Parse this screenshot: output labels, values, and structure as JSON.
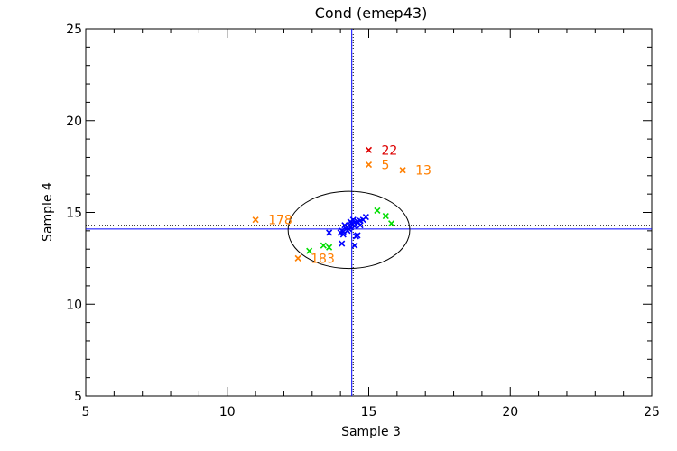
{
  "chart_data": {
    "type": "scatter",
    "title": "Cond (emep43)",
    "xlabel": "Sample 3",
    "ylabel": "Sample 4",
    "xlim": [
      5,
      25
    ],
    "ylim": [
      5,
      25
    ],
    "xticks": [
      5,
      10,
      15,
      20,
      25
    ],
    "yticks": [
      5,
      10,
      15,
      20,
      25
    ],
    "colors": {
      "blue": "#0000ff",
      "green": "#00dd00",
      "orange": "#ff7f00",
      "red": "#dd0000",
      "black": "#000000"
    },
    "reference_lines": {
      "mean_x": 14.4,
      "mean_y": 14.1,
      "median_x": 14.45,
      "median_y": 14.3
    },
    "ellipse": {
      "cx": 14.3,
      "cy": 14.05,
      "rx": 2.15,
      "ry": 2.1
    },
    "series": [
      {
        "name": "blue",
        "color": "#0000ff",
        "points": [
          [
            14.0,
            13.9
          ],
          [
            14.05,
            14.0
          ],
          [
            14.1,
            13.8
          ],
          [
            14.2,
            14.1
          ],
          [
            14.3,
            14.3
          ],
          [
            14.4,
            14.4
          ],
          [
            14.5,
            14.45
          ],
          [
            14.6,
            14.5
          ],
          [
            14.7,
            14.55
          ],
          [
            14.8,
            14.6
          ],
          [
            14.9,
            14.75
          ],
          [
            14.35,
            14.2
          ],
          [
            14.25,
            14.0
          ],
          [
            14.15,
            14.3
          ],
          [
            14.5,
            14.25
          ],
          [
            14.7,
            14.3
          ],
          [
            14.3,
            14.1
          ],
          [
            14.1,
            13.95
          ],
          [
            14.6,
            13.75
          ],
          [
            14.55,
            13.7
          ],
          [
            14.05,
            13.3
          ],
          [
            14.5,
            13.2
          ],
          [
            13.6,
            13.9
          ],
          [
            14.45,
            14.6
          ],
          [
            14.35,
            14.5
          ]
        ]
      },
      {
        "name": "green",
        "color": "#00dd00",
        "points": [
          [
            15.3,
            15.1
          ],
          [
            15.6,
            14.8
          ],
          [
            15.8,
            14.4
          ],
          [
            13.4,
            13.2
          ],
          [
            13.6,
            13.1
          ],
          [
            12.9,
            12.9
          ]
        ]
      },
      {
        "name": "orange",
        "color": "#ff7f00",
        "points": [
          [
            15.0,
            17.6
          ],
          [
            16.2,
            17.3
          ],
          [
            11.0,
            14.6
          ],
          [
            12.5,
            12.5
          ]
        ],
        "labels": [
          "5",
          "13",
          "178",
          "183"
        ]
      },
      {
        "name": "red",
        "color": "#dd0000",
        "points": [
          [
            15.0,
            18.4
          ]
        ],
        "labels": [
          "22"
        ]
      }
    ]
  }
}
